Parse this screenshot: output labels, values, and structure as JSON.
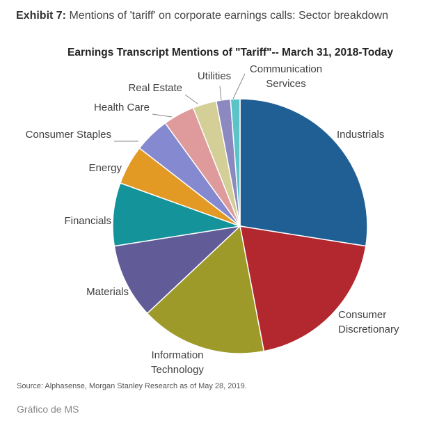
{
  "exhibit": {
    "label": "Exhibit 7:",
    "caption": "Mentions of 'tariff' on corporate earnings calls: Sector breakdown"
  },
  "source_note": "Source: Alphasense, Morgan Stanley Research as of May 28, 2019.",
  "credit": "Gráfico de MS",
  "chart_data": {
    "type": "pie",
    "title": "Earnings Transcript Mentions of \"Tariff\"-- March 31, 2018-Today",
    "start_angle_deg": 0,
    "direction": "clockwise",
    "slices": [
      {
        "label": [
          "Industrials"
        ],
        "value": 27.5,
        "color": "#1f5f94"
      },
      {
        "label": [
          "Consumer",
          "Discretionary"
        ],
        "value": 19.5,
        "color": "#b3272e"
      },
      {
        "label": [
          "Information",
          "Technology"
        ],
        "value": 16.0,
        "color": "#9e9a2a"
      },
      {
        "label": [
          "Materials"
        ],
        "value": 9.5,
        "color": "#615b98"
      },
      {
        "label": [
          "Financials"
        ],
        "value": 8.0,
        "color": "#14939a"
      },
      {
        "label": [
          "Energy"
        ],
        "value": 5.0,
        "color": "#e39a24"
      },
      {
        "label": [
          "Consumer Staples"
        ],
        "value": 4.5,
        "color": "#8589cf"
      },
      {
        "label": [
          "Health Care"
        ],
        "value": 4.0,
        "color": "#df9a9c"
      },
      {
        "label": [
          "Real Estate"
        ],
        "value": 3.0,
        "color": "#d3cf97"
      },
      {
        "label": [
          "Utilities"
        ],
        "value": 1.8,
        "color": "#8c88c0"
      },
      {
        "label": [
          "Communication",
          "Services"
        ],
        "value": 1.2,
        "color": "#5cc4c8"
      }
    ]
  }
}
